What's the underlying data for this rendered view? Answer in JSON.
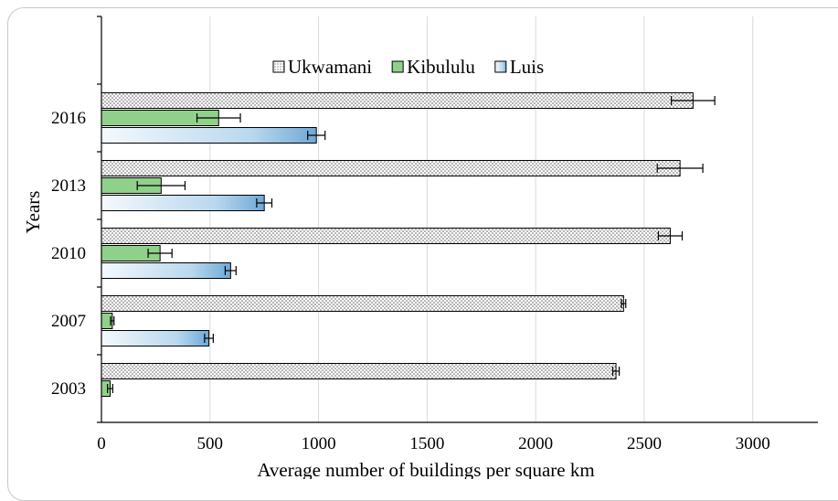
{
  "chart_data": {
    "type": "bar",
    "orientation": "horizontal",
    "xlabel": "Average number of buildings per square km",
    "ylabel": "Years",
    "xlim": [
      0,
      3300
    ],
    "xticks": [
      0,
      500,
      1000,
      1500,
      2000,
      2500,
      3000
    ],
    "grid": true,
    "legend": "top",
    "categories": [
      "2016",
      "2013",
      "2010",
      "2007",
      "2003"
    ],
    "series": [
      {
        "name": "Ukwamani",
        "pattern": "dotted",
        "color": "#ffffff",
        "values": [
          2725,
          2665,
          2620,
          2405,
          2370
        ],
        "errors": [
          100,
          105,
          55,
          10,
          15
        ]
      },
      {
        "name": "Kibululu",
        "pattern": "solid",
        "color": "#8fd18a",
        "values": [
          540,
          275,
          270,
          50,
          40
        ],
        "errors": [
          100,
          110,
          55,
          8,
          12
        ]
      },
      {
        "name": "Luis",
        "pattern": "gradient",
        "color": "#9cc6e6",
        "values": [
          990,
          750,
          595,
          495,
          null
        ],
        "errors": [
          40,
          35,
          25,
          20,
          null
        ]
      }
    ]
  }
}
